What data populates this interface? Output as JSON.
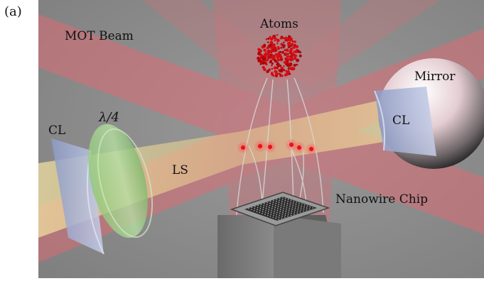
{
  "figure": {
    "panel_tag": "(a)",
    "labels": {
      "mot_beam": "MOT Beam",
      "atoms": "Atoms",
      "mirror": "Mirror",
      "cylindrical_lens_left": "CL",
      "quarter_wave_plate": "λ/4",
      "cylindrical_lens_right": "CL",
      "light_sheet": "LS",
      "nanowire_chip": "Nanowire Chip"
    },
    "colors": {
      "background": "#8c8c8c",
      "mot_beam": "#e36a73",
      "light_sheet": "#f1d890",
      "atoms": "#d40c12",
      "quarter_wave_plate": "#a6d68e",
      "cylindrical_lens": "#a9b6d8",
      "mirror": "#e8d4d8",
      "chip": "#6f6f6f"
    }
  }
}
